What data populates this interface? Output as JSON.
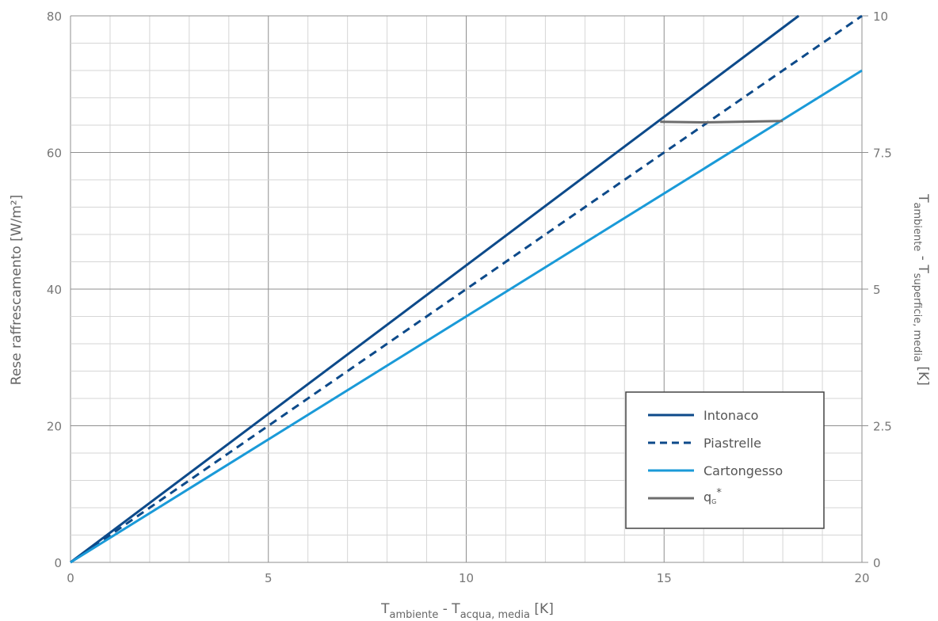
{
  "chart_data": {
    "type": "line",
    "xlabel": {
      "main": "T",
      "sub1": "ambiente",
      "mid": " - T",
      "sub2": "acqua, media",
      "end": " [K]"
    },
    "ylabel": "Rese raffrescamento [W/m²]",
    "y2label": {
      "main": "T",
      "sub1": "ambiente",
      "mid": " - T",
      "sub2": "superficie, media",
      "end": " [K]"
    },
    "xlim": [
      0,
      20
    ],
    "ylim": [
      0,
      80
    ],
    "y2lim": [
      0,
      10
    ],
    "x_ticks": [
      "0",
      "5",
      "10",
      "15",
      "20"
    ],
    "y_ticks": [
      "0",
      "20",
      "40",
      "60",
      "80"
    ],
    "y2_ticks": [
      "0",
      "2.5",
      "5",
      "7.5",
      "10"
    ],
    "grid": true,
    "legend_position": "bottom-right",
    "series": [
      {
        "name": "Intonaco",
        "color": "#0d4a8a",
        "style": "solid",
        "x": [
          0,
          18.4
        ],
        "y": [
          0,
          80
        ]
      },
      {
        "name": "Piastrelle",
        "color": "#0d4a8a",
        "style": "dashed",
        "x": [
          0,
          20
        ],
        "y": [
          0,
          80
        ]
      },
      {
        "name": "Cartongesso",
        "color": "#1a9ad8",
        "style": "solid",
        "x": [
          0,
          20
        ],
        "y": [
          0,
          72
        ]
      },
      {
        "name": "qG*",
        "color": "#6d6d6d",
        "style": "solid",
        "x": [
          14.9,
          16,
          18
        ],
        "y": [
          64.5,
          64.4,
          64.6
        ]
      }
    ]
  },
  "legend": {
    "items": [
      {
        "label": "Intonaco"
      },
      {
        "label": "Piastrelle"
      },
      {
        "label": "Cartongesso"
      },
      {
        "label_main": "q",
        "label_sub": "G",
        "label_sup": "*"
      }
    ]
  }
}
